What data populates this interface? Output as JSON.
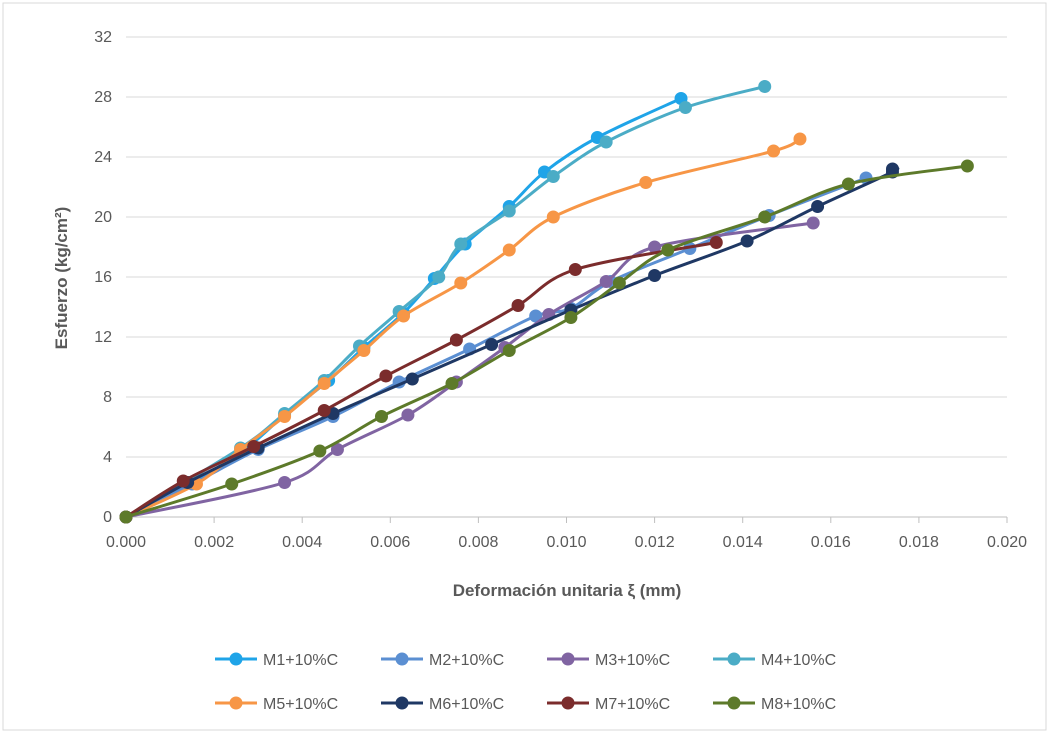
{
  "chart_data": {
    "type": "line",
    "title": "",
    "xlabel": "Deformación unitaria ξ (mm)",
    "ylabel": "Esfuerzo (kg/cm²)",
    "xlim": [
      0,
      0.02
    ],
    "ylim": [
      0,
      32
    ],
    "x_ticks": [
      "0.000",
      "0.002",
      "0.004",
      "0.006",
      "0.008",
      "0.010",
      "0.012",
      "0.014",
      "0.016",
      "0.018",
      "0.020"
    ],
    "y_ticks": [
      "0",
      "4",
      "8",
      "12",
      "16",
      "20",
      "24",
      "28",
      "32"
    ],
    "grid": "horizontal",
    "legend_position": "bottom",
    "series": [
      {
        "name": "M1+10%C",
        "color": "#1fa4e8",
        "x": [
          0,
          0.0015,
          0.0027,
          0.0036,
          0.0046,
          0.0054,
          0.0063,
          0.007,
          0.0077,
          0.0087,
          0.0095,
          0.0107,
          0.0126
        ],
        "y": [
          0,
          2.3,
          4.5,
          6.8,
          9.1,
          11.3,
          13.6,
          15.9,
          18.2,
          20.7,
          23.0,
          25.3,
          27.9
        ]
      },
      {
        "name": "M2+10%C",
        "color": "#5b8fd2",
        "x": [
          0,
          0.0015,
          0.003,
          0.0047,
          0.0062,
          0.0078,
          0.0093,
          0.0101,
          0.011,
          0.0128,
          0.0146,
          0.0168
        ],
        "y": [
          0,
          2.2,
          4.5,
          6.7,
          9.0,
          11.2,
          13.4,
          13.9,
          15.7,
          17.9,
          20.1,
          22.6
        ]
      },
      {
        "name": "M3+10%C",
        "color": "#8064a2",
        "x": [
          0,
          0.0036,
          0.0048,
          0.0064,
          0.0075,
          0.0086,
          0.0096,
          0.0109,
          0.012,
          0.0156
        ],
        "y": [
          0,
          2.3,
          4.5,
          6.8,
          9.0,
          11.3,
          13.5,
          15.7,
          18.0,
          19.6
        ]
      },
      {
        "name": "M4+10%C",
        "color": "#4bacc6",
        "x": [
          0,
          0.0026,
          0.0036,
          0.0045,
          0.0053,
          0.0062,
          0.0071,
          0.0076,
          0.0087,
          0.0097,
          0.0109,
          0.0127,
          0.0145
        ],
        "y": [
          0,
          4.6,
          6.9,
          9.1,
          11.4,
          13.7,
          16.0,
          18.2,
          20.4,
          22.7,
          25.0,
          27.3,
          28.7
        ]
      },
      {
        "name": "M5+10%C",
        "color": "#f79646",
        "x": [
          0,
          0.0016,
          0.0026,
          0.0036,
          0.0045,
          0.0054,
          0.0063,
          0.0076,
          0.0087,
          0.0097,
          0.0118,
          0.0147,
          0.0153
        ],
        "y": [
          0,
          2.2,
          4.5,
          6.7,
          8.9,
          11.1,
          13.4,
          15.6,
          17.8,
          20.0,
          22.3,
          24.4,
          25.2
        ]
      },
      {
        "name": "M6+10%C",
        "color": "#1f3864",
        "x": [
          0,
          0.0014,
          0.003,
          0.0047,
          0.0065,
          0.0083,
          0.0101,
          0.012,
          0.0141,
          0.0157,
          0.0174,
          0.0174
        ],
        "y": [
          0,
          2.3,
          4.6,
          6.9,
          9.2,
          11.5,
          13.8,
          16.1,
          18.4,
          20.7,
          23.0,
          23.2
        ]
      },
      {
        "name": "M7+10%C",
        "color": "#7b2c2c",
        "x": [
          0,
          0.0013,
          0.0029,
          0.0045,
          0.0059,
          0.0075,
          0.0089,
          0.0102,
          0.0134
        ],
        "y": [
          0,
          2.4,
          4.7,
          7.1,
          9.4,
          11.8,
          14.1,
          16.5,
          18.3
        ]
      },
      {
        "name": "M8+10%C",
        "color": "#5d7a2a",
        "x": [
          0,
          0.0024,
          0.0044,
          0.0058,
          0.0074,
          0.0087,
          0.0101,
          0.0112,
          0.0123,
          0.0145,
          0.0164,
          0.0191
        ],
        "y": [
          0,
          2.2,
          4.4,
          6.7,
          8.9,
          11.1,
          13.3,
          15.6,
          17.8,
          20.0,
          22.2,
          23.4
        ]
      }
    ]
  }
}
